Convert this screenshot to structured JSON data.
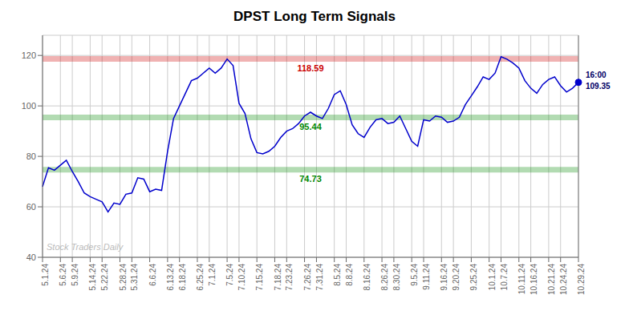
{
  "chart_data": {
    "type": "line",
    "title": "DPST Long Term Signals",
    "categories": [
      "5.1.24",
      null,
      null,
      "5.6.24",
      null,
      "5.9.24",
      null,
      null,
      "5.14.24",
      null,
      "5.22.24",
      null,
      null,
      "5.28.24",
      null,
      "5.31.24",
      null,
      null,
      "6.6.24",
      null,
      null,
      "6.13.24",
      null,
      "6.18.24",
      null,
      null,
      "6.25.24",
      null,
      "7.1.24",
      null,
      null,
      "7.5.24",
      null,
      "7.10.24",
      null,
      null,
      "7.15.24",
      null,
      null,
      "7.18.24",
      null,
      "7.23.24",
      null,
      null,
      "7.26.24",
      null,
      "7.31.24",
      null,
      null,
      "8.5.24",
      null,
      "8.8.24",
      null,
      null,
      "8.16.24",
      null,
      null,
      "8.26.24",
      null,
      "8.30.24",
      null,
      null,
      "9.5.24",
      null,
      "9.11.24",
      null,
      null,
      "9.16.24",
      null,
      "9.20.24",
      null,
      null,
      "9.25.24",
      null,
      null,
      "10.1.24",
      null,
      "10.7.24",
      null,
      null,
      "10.11.24",
      null,
      "10.16.24",
      null,
      null,
      "10.21.24",
      null,
      "10.24.24",
      null,
      null,
      "10.29.24"
    ],
    "values": [
      68.0,
      75.5,
      74.5,
      76.5,
      78.5,
      74.0,
      70.0,
      65.5,
      64.0,
      63.0,
      62.0,
      58.0,
      61.5,
      61.0,
      65.0,
      65.5,
      71.5,
      71.0,
      66.0,
      67.0,
      66.5,
      82.0,
      95.0,
      100.0,
      105.0,
      110.0,
      111.0,
      113.0,
      115.0,
      113.0,
      115.0,
      118.59,
      116.0,
      101.0,
      97.0,
      87.0,
      81.5,
      81.0,
      82.0,
      84.0,
      87.5,
      90.0,
      91.0,
      93.0,
      96.0,
      97.5,
      96.0,
      95.0,
      99.0,
      104.5,
      106.0,
      100.5,
      92.5,
      89.0,
      87.5,
      91.5,
      94.5,
      95.0,
      93.0,
      93.5,
      96.0,
      91.0,
      86.0,
      84.0,
      94.5,
      94.0,
      96.0,
      95.5,
      93.5,
      94.0,
      95.5,
      100.5,
      104.0,
      107.5,
      111.5,
      110.5,
      113.0,
      119.5,
      118.5,
      117.0,
      115.0,
      110.0,
      107.0,
      105.0,
      108.5,
      110.5,
      111.5,
      108.0,
      105.5,
      107.0,
      109.35
    ],
    "color": "#0000cc",
    "ylim": [
      40,
      128
    ],
    "yticks": [
      40,
      60,
      80,
      100,
      120
    ],
    "grid": true,
    "bands": [
      {
        "value": 118.59,
        "label": "118.59",
        "color": "#cc0000"
      },
      {
        "value": 95.44,
        "label": "95.44",
        "color": "#008800"
      },
      {
        "value": 74.73,
        "label": "74.73",
        "color": "#008800"
      }
    ],
    "last_point": {
      "value": 109.35,
      "labels": [
        "16:00",
        "109.35"
      ],
      "color": "#000066"
    },
    "watermark": "Stock Traders Daily"
  }
}
